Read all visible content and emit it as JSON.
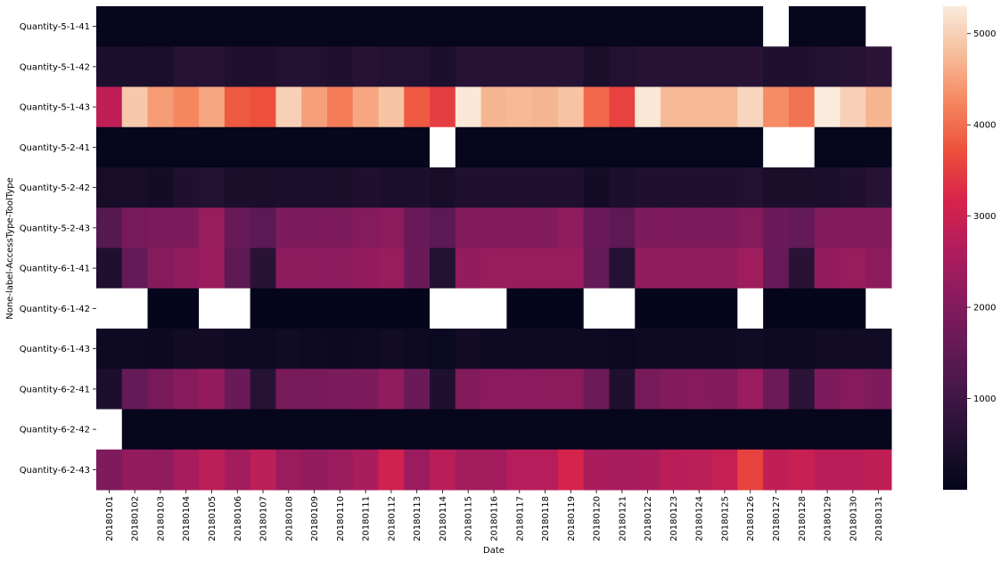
{
  "chart_data": {
    "type": "heatmap",
    "title": "",
    "xlabel": "Date",
    "ylabel": "None-label-AccessType-ToolType",
    "x": [
      "20180101",
      "20180102",
      "20180103",
      "20180104",
      "20180105",
      "20180106",
      "20180107",
      "20180108",
      "20180109",
      "20180110",
      "20180111",
      "20180112",
      "20180113",
      "20180114",
      "20180115",
      "20180116",
      "20180117",
      "20180118",
      "20180119",
      "20180120",
      "20180121",
      "20180122",
      "20180123",
      "20180124",
      "20180125",
      "20180126",
      "20180127",
      "20180128",
      "20180129",
      "20180130",
      "20180131"
    ],
    "y": [
      "Quantity-5-1-41",
      "Quantity-5-1-42",
      "Quantity-5-1-43",
      "Quantity-5-2-41",
      "Quantity-5-2-42",
      "Quantity-5-2-43",
      "Quantity-6-1-41",
      "Quantity-6-1-42",
      "Quantity-6-1-43",
      "Quantity-6-2-41",
      "Quantity-6-2-42",
      "Quantity-6-2-43"
    ],
    "values": [
      [
        50,
        50,
        50,
        50,
        50,
        50,
        50,
        50,
        50,
        50,
        50,
        50,
        50,
        50,
        50,
        50,
        50,
        50,
        50,
        50,
        50,
        50,
        50,
        50,
        50,
        50,
        null,
        50,
        50,
        50,
        null
      ],
      [
        450,
        450,
        400,
        600,
        650,
        500,
        500,
        550,
        550,
        500,
        600,
        550,
        550,
        450,
        600,
        600,
        600,
        600,
        600,
        400,
        550,
        600,
        600,
        600,
        600,
        650,
        500,
        500,
        550,
        600,
        700
      ],
      [
        2850,
        4900,
        4450,
        4250,
        4550,
        3800,
        3700,
        5000,
        4500,
        4150,
        4550,
        4850,
        3800,
        3500,
        5250,
        4700,
        4750,
        4700,
        4850,
        3950,
        3550,
        5250,
        4750,
        4750,
        4750,
        5050,
        4300,
        4050,
        5300,
        5000,
        4700
      ],
      [
        50,
        50,
        50,
        50,
        50,
        50,
        50,
        50,
        50,
        50,
        50,
        50,
        50,
        null,
        50,
        50,
        50,
        50,
        50,
        50,
        50,
        50,
        50,
        50,
        50,
        50,
        null,
        null,
        50,
        50,
        50
      ],
      [
        350,
        350,
        300,
        500,
        550,
        400,
        400,
        450,
        450,
        400,
        500,
        450,
        450,
        350,
        500,
        500,
        500,
        500,
        500,
        300,
        450,
        500,
        500,
        500,
        500,
        550,
        400,
        400,
        450,
        500,
        600
      ],
      [
        1350,
        1850,
        1900,
        1950,
        2300,
        1600,
        1450,
        1950,
        1950,
        1950,
        2050,
        2150,
        1600,
        1450,
        2000,
        2000,
        2000,
        2000,
        2200,
        1650,
        1450,
        1950,
        1950,
        1950,
        1950,
        2050,
        1650,
        1550,
        2000,
        2000,
        2000
      ],
      [
        500,
        1550,
        2050,
        2200,
        2350,
        1450,
        650,
        2150,
        2150,
        2150,
        2250,
        2300,
        1650,
        550,
        2250,
        2300,
        2300,
        2300,
        2300,
        1550,
        550,
        2200,
        2200,
        2200,
        2200,
        2400,
        1600,
        650,
        2250,
        2300,
        2150
      ],
      [
        null,
        null,
        30,
        30,
        null,
        null,
        30,
        30,
        30,
        30,
        30,
        30,
        30,
        null,
        null,
        null,
        30,
        30,
        30,
        null,
        null,
        30,
        30,
        30,
        30,
        null,
        30,
        30,
        30,
        30,
        null
      ],
      [
        200,
        200,
        180,
        250,
        300,
        200,
        200,
        250,
        200,
        180,
        200,
        250,
        200,
        150,
        300,
        200,
        200,
        200,
        200,
        200,
        150,
        200,
        200,
        200,
        200,
        250,
        200,
        200,
        250,
        250,
        250
      ],
      [
        450,
        1550,
        1850,
        2050,
        2250,
        1650,
        600,
        1850,
        1850,
        1900,
        1950,
        2200,
        1650,
        500,
        2000,
        2150,
        2100,
        2150,
        2150,
        1700,
        500,
        1850,
        2000,
        2050,
        2000,
        2300,
        1700,
        700,
        1950,
        2050,
        1950
      ],
      [
        null,
        50,
        50,
        50,
        50,
        50,
        50,
        50,
        50,
        50,
        50,
        50,
        50,
        50,
        50,
        50,
        50,
        50,
        50,
        50,
        50,
        50,
        50,
        50,
        50,
        50,
        50,
        50,
        50,
        50,
        50
      ],
      [
        1950,
        2250,
        2200,
        2500,
        2800,
        2450,
        2800,
        2350,
        2250,
        2350,
        2550,
        3050,
        2350,
        2750,
        2450,
        2450,
        2700,
        2700,
        3150,
        2550,
        2500,
        2550,
        2750,
        2800,
        2900,
        3550,
        2850,
        2950,
        2750,
        2750,
        2850
      ]
    ],
    "colorbar": {
      "ticks": [
        1000,
        2000,
        3000,
        4000,
        5000
      ],
      "range": [
        0,
        5300
      ]
    },
    "colormap": "rocket",
    "grid": false,
    "legend": "colorbar-right"
  }
}
